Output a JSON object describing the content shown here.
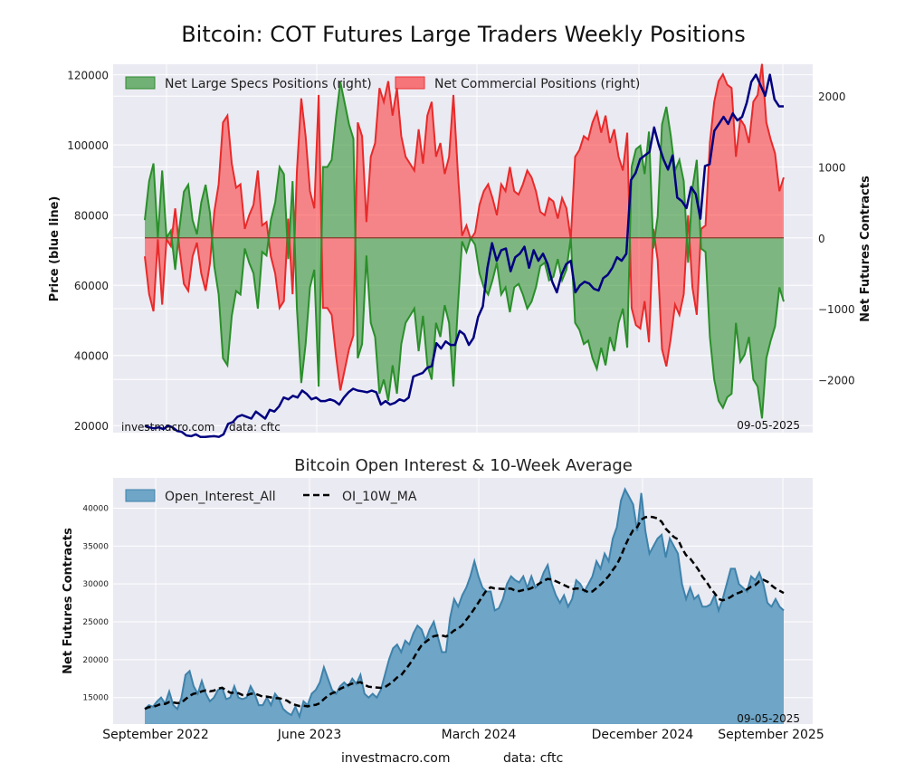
{
  "chart_data": [
    {
      "type": "area",
      "title": "Bitcoin: COT Futures Large Traders Weekly Positions",
      "ylabel_left": "Price (blue line)",
      "ylabel_right": "Net Futures Contracts",
      "ylim_left": [
        18000,
        123000
      ],
      "ylim_right": [
        -2750,
        2450
      ],
      "left_ticks": [
        20000,
        40000,
        60000,
        80000,
        100000,
        120000
      ],
      "right_ticks": [
        2000,
        1000,
        0,
        -1000,
        -2000
      ],
      "right_tick_labels": [
        "2000",
        "1000",
        "0",
        "−1000",
        "−2000"
      ],
      "legend": [
        "Net Large Specs Positions (right)",
        "Net Commercial Positions (right)"
      ],
      "legend_position": "top-left",
      "grid": true,
      "credit_site": "investmacro.com",
      "credit_data": "data: cftc",
      "date_label": "09-05-2025",
      "price_series": [
        20000,
        19500,
        19200,
        19500,
        19000,
        20000,
        19500,
        18500,
        18200,
        17200,
        17000,
        17500,
        16800,
        16800,
        16900,
        17000,
        16800,
        17500,
        20500,
        21000,
        22500,
        23000,
        22500,
        22000,
        24000,
        23000,
        22000,
        24500,
        24000,
        25500,
        28000,
        27500,
        28500,
        28000,
        30000,
        29000,
        27500,
        28000,
        27000,
        27000,
        27500,
        27000,
        26000,
        28000,
        29500,
        30500,
        30000,
        29800,
        29500,
        30000,
        29500,
        26000,
        27000,
        26000,
        26500,
        27500,
        27000,
        28000,
        34000,
        34500,
        35000,
        36500,
        37000,
        43500,
        42000,
        44000,
        43000,
        43000,
        47000,
        46000,
        43000,
        45000,
        51000,
        54000,
        65000,
        72000,
        67000,
        70000,
        70500,
        64000,
        68000,
        69000,
        71000,
        65000,
        70000,
        67000,
        69000,
        66000,
        61000,
        58000,
        63000,
        66000,
        67000,
        58000,
        60000,
        61000,
        60500,
        59000,
        58500,
        62000,
        63000,
        65000,
        68000,
        67000,
        69000,
        90000,
        92000,
        96000,
        97000,
        98000,
        105000,
        100000,
        96000,
        93000,
        97000,
        85000,
        84000,
        82000,
        88000,
        86000,
        79000,
        94000,
        94500,
        104000,
        106000,
        108000,
        106000,
        109000,
        107000,
        108000,
        112000,
        118000,
        120000,
        117000,
        114000,
        120000,
        113000,
        111000,
        111000
      ],
      "specs_series": [
        250,
        800,
        1050,
        0,
        950,
        0,
        100,
        -450,
        150,
        650,
        750,
        250,
        50,
        500,
        750,
        350,
        -400,
        -800,
        -1700,
        -1800,
        -1100,
        -750,
        -800,
        -150,
        -350,
        -500,
        -1000,
        -200,
        -250,
        250,
        500,
        1000,
        900,
        -300,
        800,
        -1000,
        -2050,
        -1500,
        -700,
        -450,
        -2100,
        1000,
        1000,
        1100,
        1700,
        2200,
        1900,
        1600,
        1400,
        -1700,
        -1500,
        -250,
        -1200,
        -1400,
        -2200,
        -2000,
        -2300,
        -1800,
        -2200,
        -1500,
        -1200,
        -1100,
        -1000,
        -1600,
        -1100,
        -1800,
        -2000,
        -1200,
        -1400,
        -950,
        -1200,
        -2100,
        -1000,
        -50,
        -200,
        0,
        -100,
        -500,
        -700,
        -800,
        -600,
        -350,
        -800,
        -700,
        -1050,
        -700,
        -650,
        -800,
        -1000,
        -900,
        -700,
        -400,
        -350,
        -600,
        -550,
        -300,
        -600,
        -450,
        0,
        -1200,
        -1300,
        -1500,
        -1450,
        -1700,
        -1850,
        -1550,
        -1800,
        -1400,
        -1600,
        -1200,
        -1000,
        -1550,
        1000,
        1250,
        1300,
        900,
        1500,
        -150,
        300,
        1600,
        1850,
        1450,
        950,
        1100,
        800,
        -350,
        700,
        1100,
        -150,
        -200,
        -1400,
        -2000,
        -2300,
        -2400,
        -2250,
        -2200,
        -1200,
        -1750,
        -1650,
        -1400,
        -2000,
        -2100,
        -2550,
        -1700,
        -1450,
        -1250,
        -700,
        -900
      ]
    },
    {
      "type": "area",
      "title": "Bitcoin Open Interest & 10-Week Average",
      "ylabel": "Net Futures Contracts",
      "ylim": [
        11500,
        44000
      ],
      "y_ticks": [
        15000,
        20000,
        25000,
        30000,
        35000,
        40000
      ],
      "legend": [
        "Open_Interest_All",
        "OI_10W_MA"
      ],
      "legend_position": "top-left",
      "grid": true,
      "x_labels": [
        "September 2022",
        "June 2023",
        "March 2024",
        "December 2024",
        "September 2025"
      ],
      "date_label": "09-05-2025",
      "oi_series": [
        13500,
        14000,
        13800,
        14500,
        15000,
        14200,
        15800,
        14000,
        13500,
        15000,
        18000,
        18500,
        16500,
        15500,
        17200,
        15500,
        14500,
        15000,
        16000,
        16300,
        14800,
        15000,
        16500,
        15000,
        14800,
        15000,
        16500,
        15500,
        14000,
        14000,
        15000,
        14000,
        15500,
        14800,
        13500,
        13000,
        12700,
        13800,
        12500,
        14500,
        14000,
        15500,
        16000,
        17000,
        19000,
        17500,
        16000,
        15500,
        16500,
        17000,
        16500,
        17500,
        16800,
        18000,
        15500,
        15000,
        15500,
        15000,
        16000,
        18000,
        20000,
        21500,
        22000,
        21000,
        22500,
        22000,
        23500,
        24500,
        24000,
        22500,
        24000,
        25000,
        23000,
        21000,
        21000,
        25500,
        28000,
        27000,
        28500,
        29500,
        31000,
        33000,
        31000,
        29500,
        29000,
        29000,
        26500,
        26800,
        28000,
        30000,
        31000,
        30500,
        30200,
        31000,
        29500,
        31000,
        29500,
        30000,
        31500,
        32500,
        30000,
        28500,
        27500,
        28500,
        27000,
        28000,
        30500,
        30000,
        29000,
        30000,
        31000,
        33000,
        32000,
        34000,
        33000,
        36000,
        37500,
        41000,
        42500,
        41500,
        40500,
        37000,
        42000,
        37000,
        34000,
        35000,
        36000,
        36500,
        33500,
        36000,
        35000,
        34000,
        30000,
        28000,
        29500,
        28000,
        28500,
        27000,
        27000,
        27300,
        28500,
        26500,
        28000,
        30000,
        32000,
        32000,
        30000,
        29500,
        29000,
        31000,
        30500,
        31500,
        30000,
        27500,
        27000,
        28000,
        27000,
        26500
      ]
    }
  ]
}
